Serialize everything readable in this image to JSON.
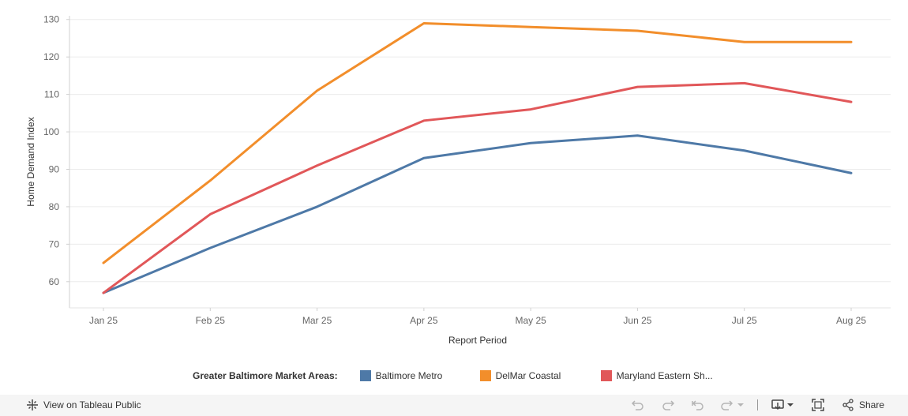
{
  "chart_data": {
    "type": "line",
    "categories": [
      "Jan 25",
      "Feb 25",
      "Mar 25",
      "Apr 25",
      "May 25",
      "Jun 25",
      "Jul 25",
      "Aug 25"
    ],
    "series": [
      {
        "name": "Baltimore Metro",
        "color": "#4e79a7",
        "values": [
          57,
          69,
          80,
          93,
          97,
          99,
          95,
          89
        ]
      },
      {
        "name": "DelMar Coastal",
        "color": "#f28e2b",
        "values": [
          65,
          87,
          111,
          129,
          128,
          127,
          124,
          124
        ]
      },
      {
        "name": "Maryland Eastern Sh...",
        "color": "#e15759",
        "values": [
          57,
          78,
          91,
          103,
          106,
          112,
          113,
          108
        ]
      }
    ],
    "xlabel": "Report Period",
    "ylabel": "Home Demand Index",
    "ylim": [
      53,
      131
    ],
    "yticks": [
      60,
      70,
      80,
      90,
      100,
      110,
      120,
      130
    ],
    "grid": true,
    "legend_title": "Greater Baltimore Market Areas:",
    "legend_position": "bottom"
  },
  "toolbar": {
    "view_label": "View on Tableau Public",
    "share_label": "Share"
  }
}
